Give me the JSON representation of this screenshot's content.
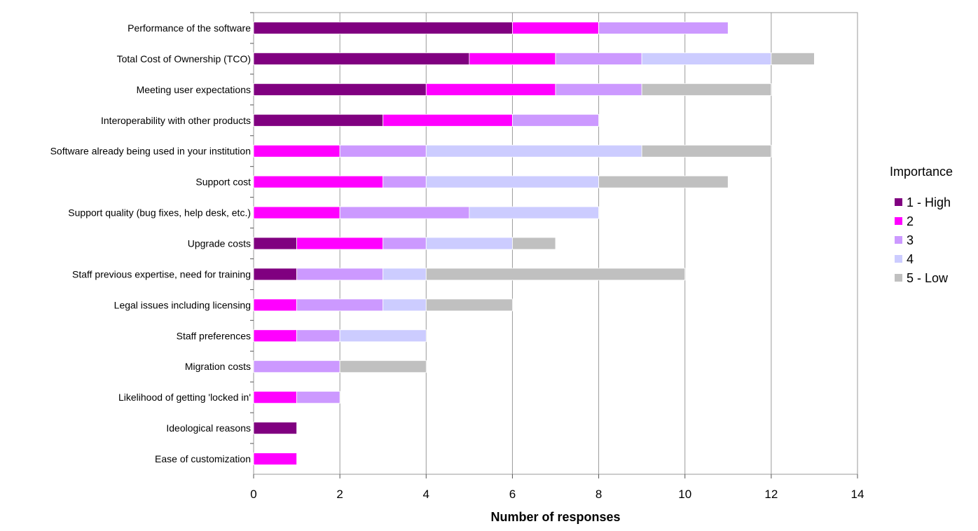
{
  "chart_data": {
    "type": "bar",
    "orientation": "horizontal",
    "stacked": true,
    "categories": [
      "Performance of the software",
      "Total Cost of Ownership (TCO)",
      "Meeting user expectations",
      "Interoperability with other products",
      "Software already being used in your institution",
      "Support cost",
      "Support quality (bug fixes, help desk, etc.)",
      "Upgrade costs",
      "Staff previous expertise, need for training",
      "Legal issues including licensing",
      "Staff preferences",
      "Migration costs",
      "Likelihood of getting 'locked in'",
      "Ideological reasons",
      "Ease of customization"
    ],
    "series": [
      {
        "name": "1 - High",
        "color": "#800080",
        "values": [
          6,
          5,
          4,
          3,
          0,
          0,
          0,
          1,
          1,
          0,
          0,
          0,
          0,
          1,
          0
        ]
      },
      {
        "name": "2",
        "color": "#ff00ff",
        "values": [
          2,
          2,
          3,
          3,
          2,
          3,
          2,
          2,
          0,
          1,
          1,
          0,
          1,
          0,
          1
        ]
      },
      {
        "name": "3",
        "color": "#cc99ff",
        "values": [
          3,
          2,
          2,
          2,
          2,
          1,
          3,
          1,
          2,
          2,
          1,
          2,
          1,
          0,
          0
        ]
      },
      {
        "name": "4",
        "color": "#ccccff",
        "values": [
          0,
          3,
          0,
          0,
          5,
          4,
          3,
          2,
          1,
          1,
          2,
          0,
          0,
          0,
          0
        ]
      },
      {
        "name": "5 - Low",
        "color": "#c0c0c0",
        "values": [
          0,
          1,
          3,
          0,
          3,
          3,
          0,
          1,
          6,
          2,
          0,
          2,
          0,
          0,
          0
        ]
      }
    ],
    "title": "",
    "xlabel": "Number of responses",
    "ylabel": "",
    "xlim": [
      0,
      14
    ],
    "xticks": [
      "0",
      "2",
      "4",
      "6",
      "8",
      "10",
      "12",
      "14"
    ],
    "grid": true,
    "legend": {
      "title": "Importance",
      "position": "right"
    }
  }
}
